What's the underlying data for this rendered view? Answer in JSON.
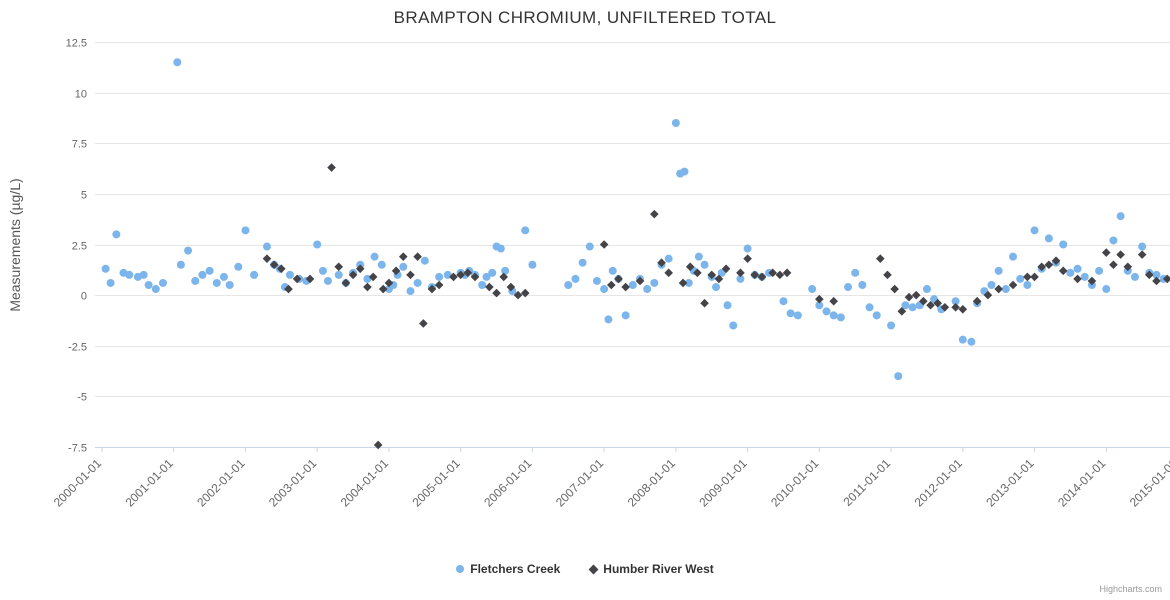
{
  "credits": "Highcharts.com",
  "chart_data": {
    "type": "scatter",
    "title": "BRAMPTON CHROMIUM, UNFILTERED TOTAL",
    "xlabel": "",
    "ylabel": "Measurements (µg/L)",
    "ylim": [
      -7.5,
      12.5
    ],
    "xlim": [
      2000,
      2015
    ],
    "grid": "horizontal",
    "legend_position": "bottom-center",
    "y_ticks": [
      12.5,
      10,
      7.5,
      5,
      2.5,
      0,
      -2.5,
      -5,
      -7.5
    ],
    "x_tick_values": [
      2000,
      2001,
      2002,
      2003,
      2004,
      2005,
      2006,
      2007,
      2008,
      2009,
      2010,
      2011,
      2012,
      2013,
      2014,
      2015
    ],
    "x_tick_labels": [
      "2000-01-01",
      "2001-01-01",
      "2002-01-01",
      "2003-01-01",
      "2004-01-01",
      "2005-01-01",
      "2006-01-01",
      "2007-01-01",
      "2008-01-01",
      "2009-01-01",
      "2010-01-01",
      "2011-01-01",
      "2012-01-01",
      "2013-01-01",
      "2014-01-01",
      "2015-01-01"
    ],
    "colors": {
      "grid": "#e6e6e6",
      "axis_line": "#ccd6eb",
      "tick_label": "#666666",
      "title": "#333333"
    },
    "series": [
      {
        "name": "Fletchers Creek",
        "marker": "circle",
        "color": "#7cb5ec",
        "points": [
          [
            2000.05,
            1.3
          ],
          [
            2000.12,
            0.6
          ],
          [
            2000.2,
            3.0
          ],
          [
            2000.3,
            1.1
          ],
          [
            2000.38,
            1.0
          ],
          [
            2000.5,
            0.9
          ],
          [
            2000.58,
            1.0
          ],
          [
            2000.65,
            0.5
          ],
          [
            2000.75,
            0.3
          ],
          [
            2000.85,
            0.6
          ],
          [
            2001.05,
            11.5
          ],
          [
            2001.1,
            1.5
          ],
          [
            2001.2,
            2.2
          ],
          [
            2001.3,
            0.7
          ],
          [
            2001.4,
            1.0
          ],
          [
            2001.5,
            1.2
          ],
          [
            2001.6,
            0.6
          ],
          [
            2001.7,
            0.9
          ],
          [
            2001.78,
            0.5
          ],
          [
            2001.9,
            1.4
          ],
          [
            2002.0,
            3.2
          ],
          [
            2002.12,
            1.0
          ],
          [
            2002.3,
            2.4
          ],
          [
            2002.4,
            1.5
          ],
          [
            2002.48,
            1.3
          ],
          [
            2002.55,
            0.4
          ],
          [
            2002.62,
            1.0
          ],
          [
            2002.75,
            0.8
          ],
          [
            2002.85,
            0.7
          ],
          [
            2003.0,
            2.5
          ],
          [
            2003.08,
            1.2
          ],
          [
            2003.15,
            0.7
          ],
          [
            2003.3,
            1.0
          ],
          [
            2003.4,
            0.6
          ],
          [
            2003.5,
            1.1
          ],
          [
            2003.6,
            1.5
          ],
          [
            2003.7,
            0.8
          ],
          [
            2003.8,
            1.9
          ],
          [
            2003.9,
            1.5
          ],
          [
            2004.0,
            0.3
          ],
          [
            2004.06,
            0.5
          ],
          [
            2004.12,
            1.0
          ],
          [
            2004.2,
            1.4
          ],
          [
            2004.3,
            0.2
          ],
          [
            2004.4,
            0.6
          ],
          [
            2004.5,
            1.7
          ],
          [
            2004.6,
            0.4
          ],
          [
            2004.7,
            0.9
          ],
          [
            2004.82,
            1.0
          ],
          [
            2005.0,
            1.1
          ],
          [
            2005.06,
            1.0
          ],
          [
            2005.12,
            1.2
          ],
          [
            2005.2,
            1.0
          ],
          [
            2005.3,
            0.5
          ],
          [
            2005.36,
            0.9
          ],
          [
            2005.44,
            1.1
          ],
          [
            2005.5,
            2.4
          ],
          [
            2005.56,
            2.3
          ],
          [
            2005.62,
            1.2
          ],
          [
            2005.72,
            0.2
          ],
          [
            2005.9,
            3.2
          ],
          [
            2006.0,
            1.5
          ],
          [
            2006.5,
            0.5
          ],
          [
            2006.6,
            0.8
          ],
          [
            2006.7,
            1.6
          ],
          [
            2006.8,
            2.4
          ],
          [
            2006.9,
            0.7
          ],
          [
            2007.0,
            0.3
          ],
          [
            2007.06,
            -1.2
          ],
          [
            2007.12,
            1.2
          ],
          [
            2007.2,
            0.8
          ],
          [
            2007.3,
            -1.0
          ],
          [
            2007.4,
            0.5
          ],
          [
            2007.5,
            0.8
          ],
          [
            2007.6,
            0.3
          ],
          [
            2007.7,
            0.6
          ],
          [
            2007.8,
            1.5
          ],
          [
            2007.9,
            1.8
          ],
          [
            2008.0,
            8.5
          ],
          [
            2008.06,
            6.0
          ],
          [
            2008.12,
            6.1
          ],
          [
            2008.18,
            0.6
          ],
          [
            2008.25,
            1.2
          ],
          [
            2008.32,
            1.9
          ],
          [
            2008.4,
            1.5
          ],
          [
            2008.5,
            0.9
          ],
          [
            2008.56,
            0.4
          ],
          [
            2008.64,
            1.1
          ],
          [
            2008.72,
            -0.5
          ],
          [
            2008.8,
            -1.5
          ],
          [
            2008.9,
            0.8
          ],
          [
            2009.0,
            2.3
          ],
          [
            2009.1,
            1.0
          ],
          [
            2009.2,
            0.9
          ],
          [
            2009.3,
            1.1
          ],
          [
            2009.5,
            -0.3
          ],
          [
            2009.6,
            -0.9
          ],
          [
            2009.7,
            -1.0
          ],
          [
            2009.9,
            0.3
          ],
          [
            2010.0,
            -0.5
          ],
          [
            2010.1,
            -0.8
          ],
          [
            2010.2,
            -1.0
          ],
          [
            2010.3,
            -1.1
          ],
          [
            2010.4,
            0.4
          ],
          [
            2010.5,
            1.1
          ],
          [
            2010.6,
            0.5
          ],
          [
            2010.7,
            -0.6
          ],
          [
            2010.8,
            -1.0
          ],
          [
            2011.0,
            -1.5
          ],
          [
            2011.1,
            -4.0
          ],
          [
            2011.2,
            -0.5
          ],
          [
            2011.3,
            -0.6
          ],
          [
            2011.4,
            -0.5
          ],
          [
            2011.5,
            0.3
          ],
          [
            2011.6,
            -0.2
          ],
          [
            2011.7,
            -0.7
          ],
          [
            2011.9,
            -0.3
          ],
          [
            2012.0,
            -2.2
          ],
          [
            2012.12,
            -2.3
          ],
          [
            2012.2,
            -0.4
          ],
          [
            2012.3,
            0.2
          ],
          [
            2012.4,
            0.5
          ],
          [
            2012.5,
            1.2
          ],
          [
            2012.6,
            0.3
          ],
          [
            2012.7,
            1.9
          ],
          [
            2012.8,
            0.8
          ],
          [
            2012.9,
            0.5
          ],
          [
            2013.0,
            3.2
          ],
          [
            2013.1,
            1.3
          ],
          [
            2013.2,
            2.8
          ],
          [
            2013.3,
            1.6
          ],
          [
            2013.4,
            2.5
          ],
          [
            2013.5,
            1.1
          ],
          [
            2013.6,
            1.3
          ],
          [
            2013.7,
            0.9
          ],
          [
            2013.8,
            0.5
          ],
          [
            2013.9,
            1.2
          ],
          [
            2014.0,
            0.3
          ],
          [
            2014.1,
            2.7
          ],
          [
            2014.2,
            3.9
          ],
          [
            2014.3,
            1.2
          ],
          [
            2014.4,
            0.9
          ],
          [
            2014.5,
            2.4
          ],
          [
            2014.6,
            1.1
          ],
          [
            2014.7,
            1.0
          ],
          [
            2014.8,
            0.8
          ]
        ]
      },
      {
        "name": "Humber River West",
        "marker": "diamond",
        "color": "#434348",
        "points": [
          [
            2002.3,
            1.8
          ],
          [
            2002.4,
            1.5
          ],
          [
            2002.5,
            1.3
          ],
          [
            2002.6,
            0.3
          ],
          [
            2002.72,
            0.8
          ],
          [
            2002.9,
            0.8
          ],
          [
            2003.2,
            6.3
          ],
          [
            2003.3,
            1.4
          ],
          [
            2003.4,
            0.6
          ],
          [
            2003.5,
            1.0
          ],
          [
            2003.6,
            1.3
          ],
          [
            2003.7,
            0.4
          ],
          [
            2003.78,
            0.9
          ],
          [
            2003.85,
            -7.4
          ],
          [
            2003.92,
            0.3
          ],
          [
            2004.0,
            0.6
          ],
          [
            2004.1,
            1.2
          ],
          [
            2004.2,
            1.9
          ],
          [
            2004.3,
            1.0
          ],
          [
            2004.4,
            1.9
          ],
          [
            2004.48,
            -1.4
          ],
          [
            2004.6,
            0.3
          ],
          [
            2004.7,
            0.5
          ],
          [
            2004.9,
            0.9
          ],
          [
            2005.0,
            1.0
          ],
          [
            2005.1,
            1.1
          ],
          [
            2005.2,
            0.9
          ],
          [
            2005.4,
            0.4
          ],
          [
            2005.5,
            0.1
          ],
          [
            2005.6,
            0.9
          ],
          [
            2005.7,
            0.4
          ],
          [
            2005.8,
            0.0
          ],
          [
            2005.9,
            0.1
          ],
          [
            2007.0,
            2.5
          ],
          [
            2007.1,
            0.5
          ],
          [
            2007.2,
            0.8
          ],
          [
            2007.3,
            0.4
          ],
          [
            2007.5,
            0.7
          ],
          [
            2007.7,
            4.0
          ],
          [
            2007.8,
            1.6
          ],
          [
            2007.9,
            1.1
          ],
          [
            2008.1,
            0.6
          ],
          [
            2008.2,
            1.4
          ],
          [
            2008.3,
            1.1
          ],
          [
            2008.4,
            -0.4
          ],
          [
            2008.5,
            1.0
          ],
          [
            2008.6,
            0.8
          ],
          [
            2008.7,
            1.3
          ],
          [
            2008.9,
            1.1
          ],
          [
            2009.0,
            1.8
          ],
          [
            2009.1,
            1.0
          ],
          [
            2009.2,
            0.9
          ],
          [
            2009.35,
            1.1
          ],
          [
            2009.45,
            1.0
          ],
          [
            2009.55,
            1.1
          ],
          [
            2010.0,
            -0.2
          ],
          [
            2010.2,
            -0.3
          ],
          [
            2010.85,
            1.8
          ],
          [
            2010.95,
            1.0
          ],
          [
            2011.05,
            0.3
          ],
          [
            2011.15,
            -0.8
          ],
          [
            2011.25,
            -0.1
          ],
          [
            2011.35,
            0.0
          ],
          [
            2011.45,
            -0.3
          ],
          [
            2011.55,
            -0.5
          ],
          [
            2011.65,
            -0.4
          ],
          [
            2011.75,
            -0.6
          ],
          [
            2011.9,
            -0.6
          ],
          [
            2012.0,
            -0.7
          ],
          [
            2012.2,
            -0.3
          ],
          [
            2012.35,
            0.0
          ],
          [
            2012.5,
            0.3
          ],
          [
            2012.7,
            0.5
          ],
          [
            2012.9,
            0.9
          ],
          [
            2013.0,
            0.9
          ],
          [
            2013.1,
            1.4
          ],
          [
            2013.2,
            1.5
          ],
          [
            2013.3,
            1.7
          ],
          [
            2013.4,
            1.2
          ],
          [
            2013.6,
            0.8
          ],
          [
            2013.8,
            0.7
          ],
          [
            2014.0,
            2.1
          ],
          [
            2014.1,
            1.5
          ],
          [
            2014.2,
            2.0
          ],
          [
            2014.3,
            1.4
          ],
          [
            2014.5,
            2.0
          ],
          [
            2014.6,
            1.0
          ],
          [
            2014.7,
            0.7
          ],
          [
            2014.85,
            0.8
          ]
        ]
      }
    ]
  }
}
